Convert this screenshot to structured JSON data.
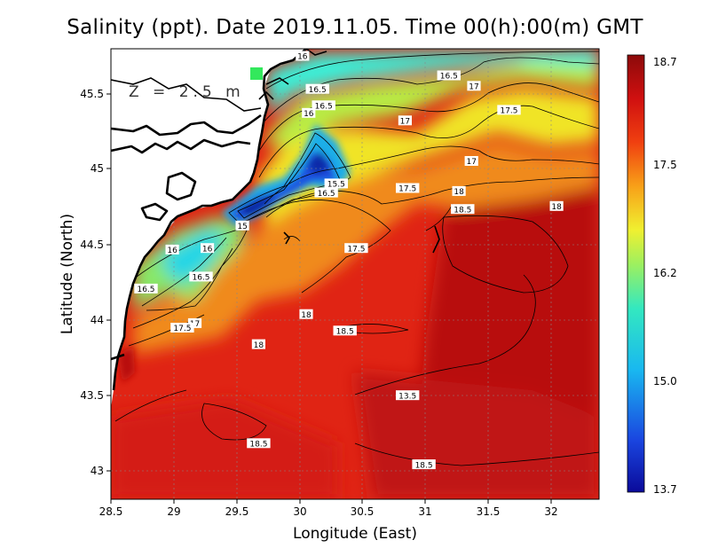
{
  "title": "Salinity (ppt). Date 2019.11.05. Time 00(h):00(m) GMT",
  "depth_label": "Z = 2.5 m",
  "chart_data": {
    "type": "heatmap",
    "variable": "Salinity",
    "units": "ppt",
    "xlabel": "Longitude (East)",
    "ylabel": "Latitude (North)",
    "xlim": [
      28.5,
      32.4
    ],
    "ylim": [
      42.8,
      45.8
    ],
    "x_ticks": [
      "28.5",
      "29",
      "29.5",
      "30",
      "30.5",
      "31",
      "31.5",
      "32"
    ],
    "y_ticks": [
      "43",
      "43.5",
      "44",
      "44.5",
      "45",
      "45.5"
    ],
    "colorbar": {
      "min": 13.7,
      "max": 18.7,
      "labels": [
        "18.7",
        "17.5",
        "16.2",
        "15.0",
        "13.7"
      ]
    },
    "contour_labels": [
      {
        "text": "16",
        "lon": 30.03,
        "lat": 45.75
      },
      {
        "text": "16.5",
        "lon": 31.2,
        "lat": 45.62
      },
      {
        "text": "16.5",
        "lon": 30.15,
        "lat": 45.53
      },
      {
        "text": "17",
        "lon": 31.4,
        "lat": 45.55
      },
      {
        "text": "16.5",
        "lon": 30.2,
        "lat": 45.42
      },
      {
        "text": "16",
        "lon": 30.08,
        "lat": 45.37
      },
      {
        "text": "17.5",
        "lon": 31.68,
        "lat": 45.39
      },
      {
        "text": "17",
        "lon": 30.85,
        "lat": 45.32
      },
      {
        "text": "17",
        "lon": 31.38,
        "lat": 45.05
      },
      {
        "text": "15.5",
        "lon": 30.3,
        "lat": 44.9
      },
      {
        "text": "16.5",
        "lon": 30.22,
        "lat": 44.84
      },
      {
        "text": "17.5",
        "lon": 30.87,
        "lat": 44.87
      },
      {
        "text": "18",
        "lon": 31.28,
        "lat": 44.85
      },
      {
        "text": "15",
        "lon": 29.55,
        "lat": 44.62
      },
      {
        "text": "18.5",
        "lon": 31.31,
        "lat": 44.73
      },
      {
        "text": "18",
        "lon": 32.06,
        "lat": 44.75
      },
      {
        "text": "16",
        "lon": 28.99,
        "lat": 44.46
      },
      {
        "text": "16",
        "lon": 29.27,
        "lat": 44.47
      },
      {
        "text": "17.5",
        "lon": 30.46,
        "lat": 44.47
      },
      {
        "text": "16.5",
        "lon": 29.22,
        "lat": 44.28
      },
      {
        "text": "16.5",
        "lon": 28.78,
        "lat": 44.2
      },
      {
        "text": "18",
        "lon": 30.06,
        "lat": 44.03
      },
      {
        "text": "17",
        "lon": 29.17,
        "lat": 43.97
      },
      {
        "text": "17.5",
        "lon": 29.07,
        "lat": 43.94
      },
      {
        "text": "18.5",
        "lon": 30.37,
        "lat": 43.92
      },
      {
        "text": "18",
        "lon": 29.68,
        "lat": 43.83
      },
      {
        "text": "13.5",
        "lon": 30.87,
        "lat": 43.49
      },
      {
        "text": "18.5",
        "lon": 29.68,
        "lat": 43.17
      },
      {
        "text": "18.5",
        "lon": 31.0,
        "lat": 43.03
      }
    ]
  }
}
